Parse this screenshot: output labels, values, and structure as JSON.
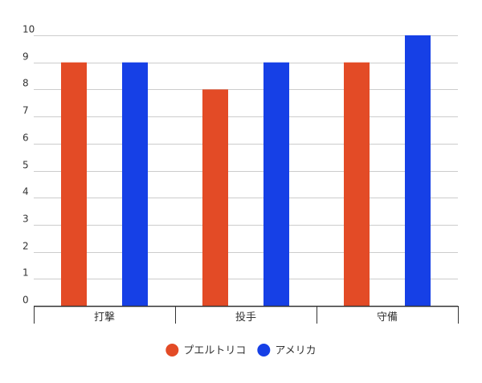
{
  "chart_data": {
    "type": "bar",
    "categories": [
      "打撃",
      "投手",
      "守備"
    ],
    "series": [
      {
        "name": "プエルトリコ",
        "values": [
          9,
          8,
          9
        ],
        "color": "#E34B26"
      },
      {
        "name": "アメリカ",
        "values": [
          9,
          9,
          10
        ],
        "color": "#1640E6"
      }
    ],
    "ylim": [
      0,
      10
    ],
    "yticks": [
      0,
      1,
      2,
      3,
      4,
      5,
      6,
      7,
      8,
      9,
      10
    ],
    "grid": true,
    "legend_position": "bottom"
  }
}
